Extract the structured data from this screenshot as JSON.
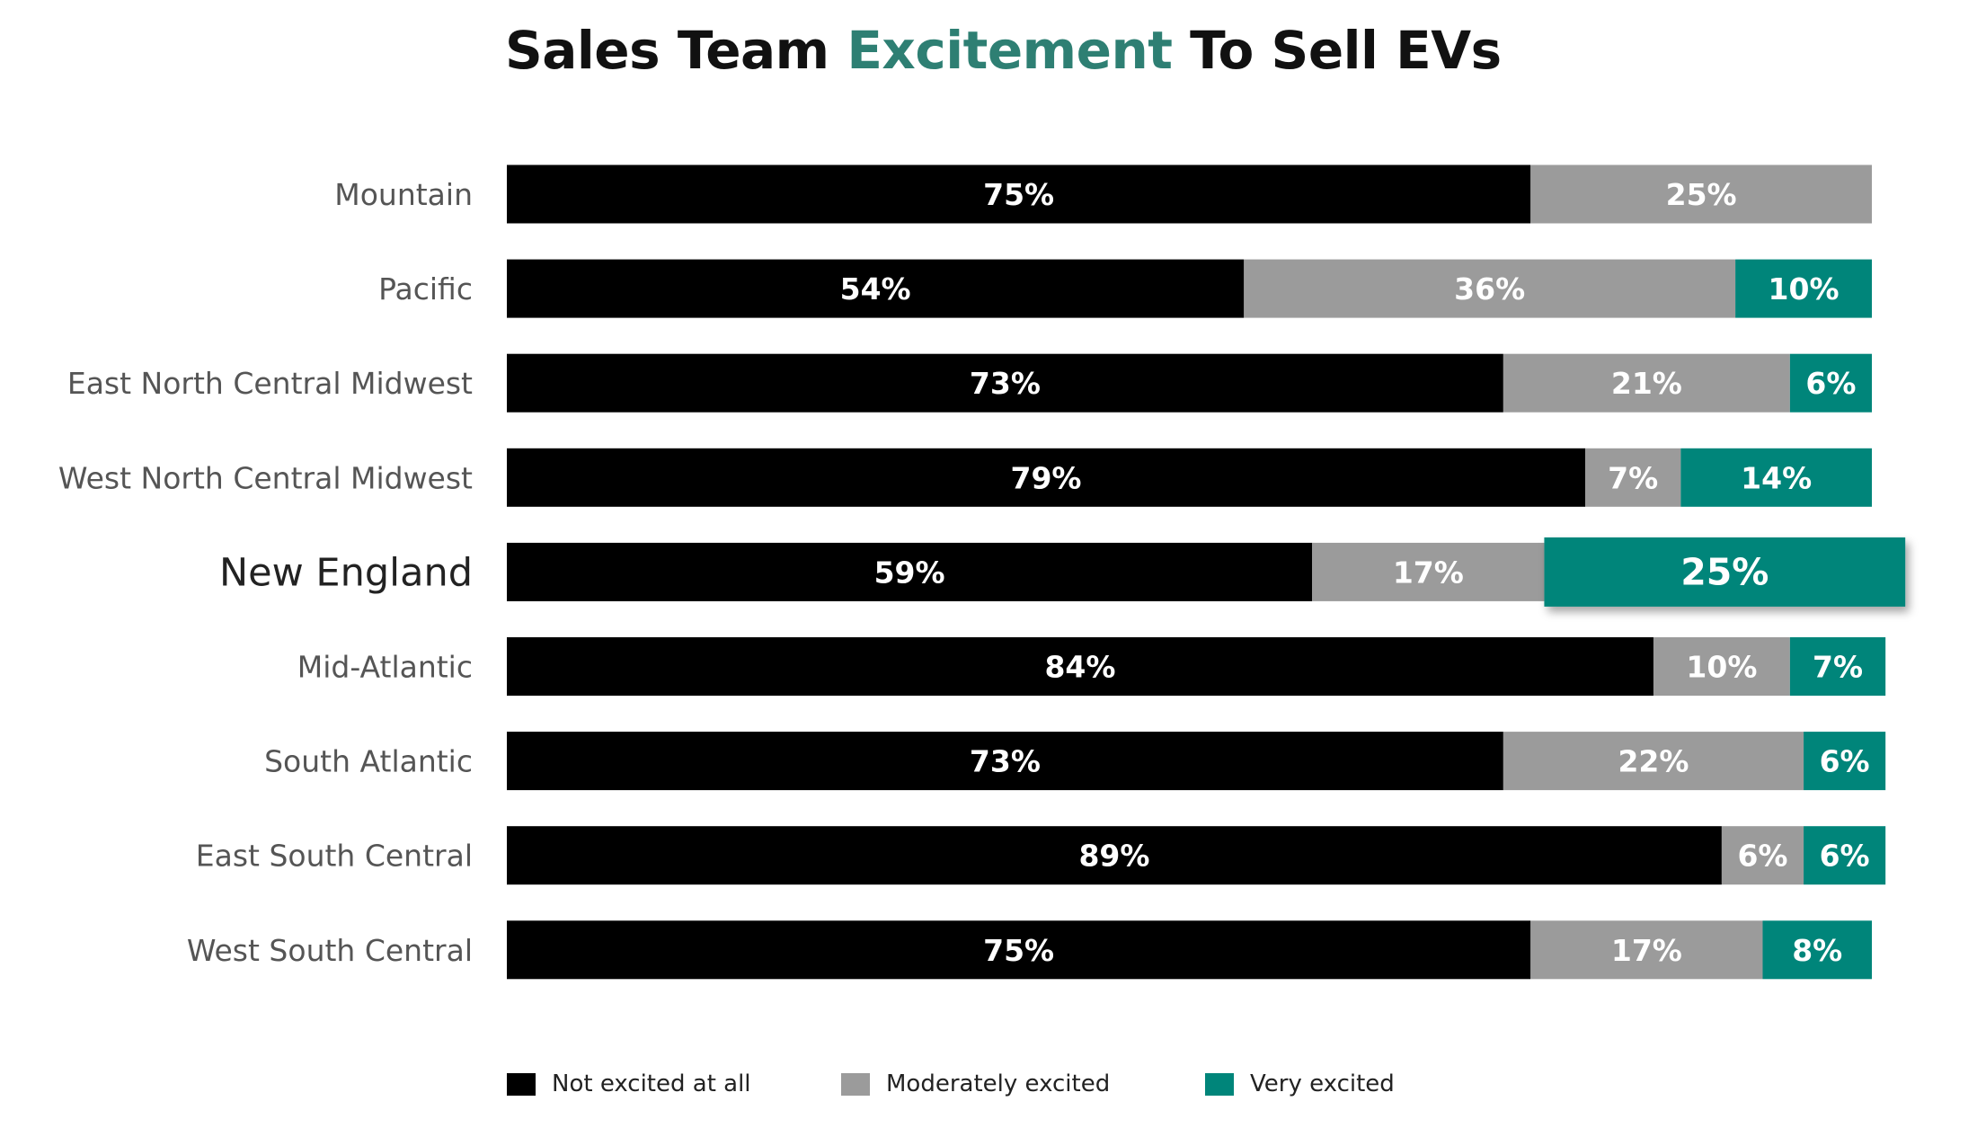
{
  "title": {
    "prefix": "Sales Team ",
    "highlight": "Excitement",
    "suffix": " To Sell EVs",
    "highlight_color": "#2e7f73"
  },
  "chart_data": {
    "type": "bar",
    "orientation": "horizontal",
    "stacked": true,
    "title": "Sales Team Excitement To Sell EVs",
    "xlabel": "",
    "ylabel": "",
    "xlim": [
      0,
      100
    ],
    "grid": false,
    "legend_position": "bottom-left",
    "categories": [
      "Mountain",
      "Pacific",
      "East North Central Midwest",
      "West North Central Midwest",
      "New England",
      "Mid-Atlantic",
      "South Atlantic",
      "East South Central",
      "West South Central"
    ],
    "highlighted_category": "New England",
    "series": [
      {
        "name": "Not excited at all",
        "color": "#000000",
        "values": [
          75,
          54,
          73,
          79,
          59,
          84,
          73,
          89,
          75
        ]
      },
      {
        "name": "Moderately excited",
        "color": "#9b9b9b",
        "values": [
          25,
          36,
          21,
          7,
          17,
          10,
          22,
          6,
          17
        ]
      },
      {
        "name": "Very excited",
        "color": "#00857a",
        "values": [
          0,
          10,
          6,
          14,
          25,
          7,
          6,
          6,
          8
        ]
      }
    ],
    "value_suffix": "%"
  }
}
